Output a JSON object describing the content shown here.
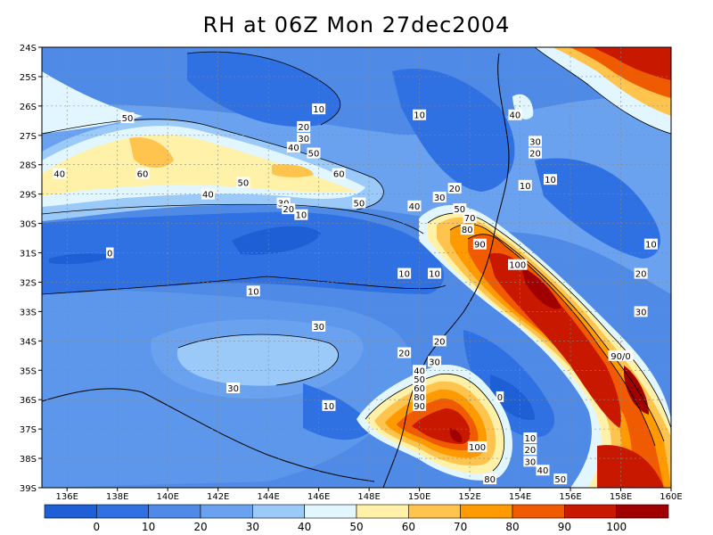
{
  "title": "RH at 06Z Mon 27dec2004",
  "lat_labels": [
    "24S",
    "25S",
    "26S",
    "27S",
    "28S",
    "29S",
    "30S",
    "31S",
    "32S",
    "33S",
    "34S",
    "35S",
    "36S",
    "37S",
    "38S",
    "39S"
  ],
  "lon_labels": [
    "136E",
    "138E",
    "140E",
    "142E",
    "144E",
    "146E",
    "148E",
    "150E",
    "152E",
    "154E",
    "156E",
    "158E",
    "160E"
  ],
  "colorbar": {
    "tick_labels": [
      "0",
      "10",
      "20",
      "30",
      "40",
      "50",
      "60",
      "70",
      "80",
      "90",
      "100"
    ],
    "colors": [
      "#1f5fd6",
      "#2f70e2",
      "#4f8ae6",
      "#6aa2ef",
      "#9ccaf8",
      "#e2f6ff",
      "#fff2a8",
      "#ffc44d",
      "#ff9a00",
      "#f05a00",
      "#c81800",
      "#a00000"
    ]
  },
  "contour_labels": [
    {
      "text": "10",
      "lon": 146.0,
      "lat": -26.1
    },
    {
      "text": "10",
      "lon": 150.0,
      "lat": -26.3
    },
    {
      "text": "40",
      "lon": 153.8,
      "lat": -26.3
    },
    {
      "text": "50",
      "lon": 138.4,
      "lat": -26.4
    },
    {
      "text": "20",
      "lon": 145.4,
      "lat": -26.7
    },
    {
      "text": "30",
      "lon": 145.4,
      "lat": -27.1
    },
    {
      "text": "40",
      "lon": 145.0,
      "lat": -27.4
    },
    {
      "text": "30",
      "lon": 154.6,
      "lat": -27.2
    },
    {
      "text": "20",
      "lon": 154.6,
      "lat": -27.6
    },
    {
      "text": "50",
      "lon": 145.8,
      "lat": -27.6
    },
    {
      "text": "60",
      "lon": 139.0,
      "lat": -28.3
    },
    {
      "text": "60",
      "lon": 146.8,
      "lat": -28.3
    },
    {
      "text": "40",
      "lon": 135.7,
      "lat": -28.3
    },
    {
      "text": "10",
      "lon": 154.2,
      "lat": -28.7
    },
    {
      "text": "10",
      "lon": 155.2,
      "lat": -28.5
    },
    {
      "text": "50",
      "lon": 143.0,
      "lat": -28.6
    },
    {
      "text": "20",
      "lon": 151.4,
      "lat": -28.8
    },
    {
      "text": "40",
      "lon": 141.6,
      "lat": -29.0
    },
    {
      "text": "30",
      "lon": 150.8,
      "lat": -29.1
    },
    {
      "text": "50",
      "lon": 147.6,
      "lat": -29.3
    },
    {
      "text": "30",
      "lon": 144.6,
      "lat": -29.3
    },
    {
      "text": "40",
      "lon": 149.8,
      "lat": -29.4
    },
    {
      "text": "20",
      "lon": 144.8,
      "lat": -29.5
    },
    {
      "text": "50",
      "lon": 151.6,
      "lat": -29.5
    },
    {
      "text": "10",
      "lon": 145.3,
      "lat": -29.7
    },
    {
      "text": "70",
      "lon": 152.0,
      "lat": -29.8
    },
    {
      "text": "80",
      "lon": 151.9,
      "lat": -30.2
    },
    {
      "text": "10",
      "lon": 159.2,
      "lat": -30.7
    },
    {
      "text": "90",
      "lon": 152.4,
      "lat": -30.7
    },
    {
      "text": "0",
      "lon": 137.7,
      "lat": -31.0
    },
    {
      "text": "100",
      "lon": 153.9,
      "lat": -31.4
    },
    {
      "text": "10",
      "lon": 149.4,
      "lat": -31.7
    },
    {
      "text": "10",
      "lon": 150.6,
      "lat": -31.7
    },
    {
      "text": "20",
      "lon": 158.8,
      "lat": -31.7
    },
    {
      "text": "10",
      "lon": 143.4,
      "lat": -32.3
    },
    {
      "text": "30",
      "lon": 158.8,
      "lat": -33.0
    },
    {
      "text": "30",
      "lon": 146.0,
      "lat": -33.5
    },
    {
      "text": "20",
      "lon": 150.8,
      "lat": -34.0
    },
    {
      "text": "20",
      "lon": 149.4,
      "lat": -34.4
    },
    {
      "text": "90/0",
      "lon": 158.0,
      "lat": -34.5
    },
    {
      "text": "30",
      "lon": 150.6,
      "lat": -34.7
    },
    {
      "text": "40",
      "lon": 150.0,
      "lat": -35.0
    },
    {
      "text": "50",
      "lon": 150.0,
      "lat": -35.3
    },
    {
      "text": "30",
      "lon": 142.6,
      "lat": -35.6
    },
    {
      "text": "60",
      "lon": 150.0,
      "lat": -35.6
    },
    {
      "text": "80",
      "lon": 150.0,
      "lat": -35.9
    },
    {
      "text": "0",
      "lon": 153.2,
      "lat": -35.9
    },
    {
      "text": "90",
      "lon": 150.0,
      "lat": -36.2
    },
    {
      "text": "10",
      "lon": 146.4,
      "lat": -36.2
    },
    {
      "text": "10",
      "lon": 154.4,
      "lat": -37.3
    },
    {
      "text": "100",
      "lon": 152.3,
      "lat": -37.6
    },
    {
      "text": "20",
      "lon": 154.4,
      "lat": -37.7
    },
    {
      "text": "30",
      "lon": 154.4,
      "lat": -38.1
    },
    {
      "text": "40",
      "lon": 154.9,
      "lat": -38.4
    },
    {
      "text": "80",
      "lon": 152.8,
      "lat": -38.7
    },
    {
      "text": "50",
      "lon": 155.6,
      "lat": -38.7
    }
  ]
}
